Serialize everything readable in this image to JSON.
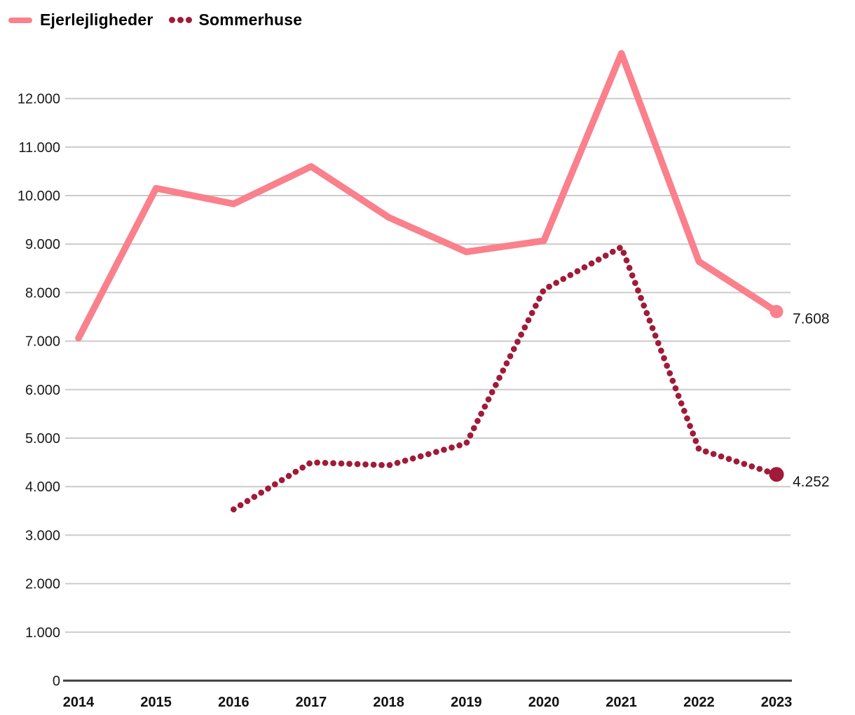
{
  "legend": {
    "items": [
      {
        "label": "Ejerlejligheder",
        "marker": "solid-line"
      },
      {
        "label": "Sommerhuse",
        "marker": "dotted-line"
      }
    ]
  },
  "chart_data": {
    "type": "line",
    "title": "",
    "x_labels": [
      "2014",
      "2015",
      "2016",
      "2017",
      "2018",
      "2019",
      "2020",
      "2021",
      "2022",
      "2023"
    ],
    "series": [
      {
        "name": "Ejerlejligheder",
        "line_style": "solid",
        "color": "#FA808C",
        "values": [
          7060,
          10150,
          9830,
          10600,
          9550,
          8840,
          9070,
          12930,
          8640,
          7608
        ],
        "end_label": "7.608"
      },
      {
        "name": "Sommerhuse",
        "line_style": "dotted",
        "color": "#A11A38",
        "values": [
          null,
          null,
          3530,
          4500,
          4440,
          4890,
          8060,
          8940,
          4770,
          4252
        ],
        "end_label": "4.252"
      }
    ],
    "ylim": [
      0,
      13000
    ],
    "ytick_step": 1000,
    "ytick_values": [
      0,
      1000,
      2000,
      3000,
      4000,
      5000,
      6000,
      7000,
      8000,
      9000,
      10000,
      11000,
      12000
    ],
    "ytick_labels": [
      "0",
      "1.000",
      "2.000",
      "3.000",
      "4.000",
      "5.000",
      "6.000",
      "7.000",
      "8.000",
      "9.000",
      "10.000",
      "11.000",
      "12.000"
    ],
    "grid": true,
    "legend_position": "top-left",
    "grid_color": "#CBCBCB",
    "axis_color": "#3D3D3D",
    "tick_color": "#1A1A1A",
    "x_label_color": "#111111"
  }
}
